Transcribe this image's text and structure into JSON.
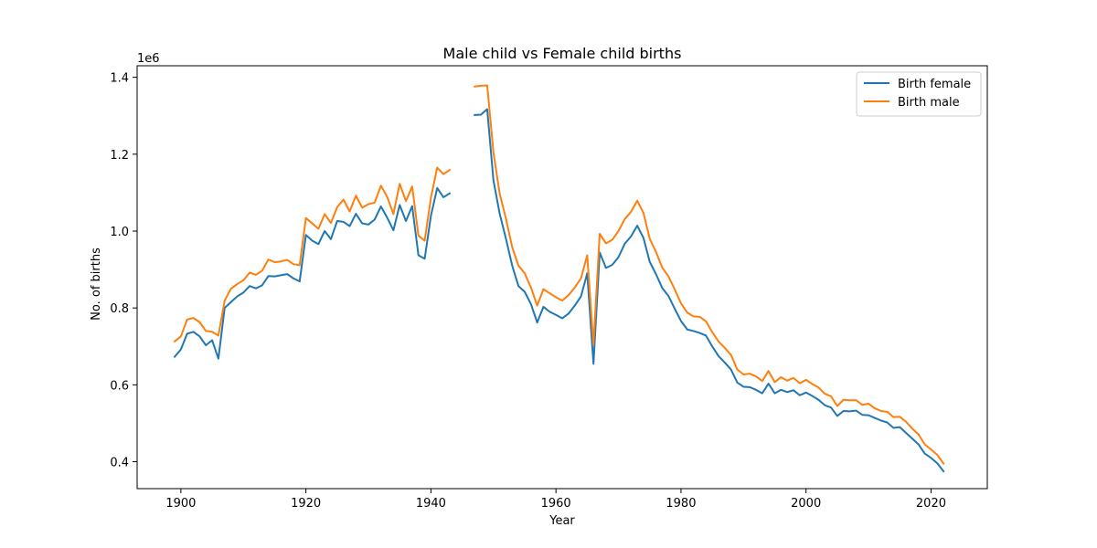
{
  "chart_data": {
    "type": "line",
    "title": "Male child vs Female child births",
    "xlabel": "Year",
    "ylabel": "No. of births",
    "y_offset_label": "1e6",
    "xlim": [
      1893,
      2029
    ],
    "ylim": [
      330000,
      1430000
    ],
    "xticks": [
      1900,
      1920,
      1940,
      1960,
      1980,
      2000,
      2020
    ],
    "yticks": [
      400000,
      600000,
      800000,
      1000000,
      1200000,
      1400000
    ],
    "ytick_labels": [
      "0.4",
      "0.6",
      "0.8",
      "1.0",
      "1.2",
      "1.4"
    ],
    "legend_position": "top-right",
    "grid": false,
    "series": [
      {
        "name": "Birth female",
        "color": "#1f77b4",
        "points": [
          [
            1899,
            673000
          ],
          [
            1900,
            692000
          ],
          [
            1901,
            733000
          ],
          [
            1902,
            738000
          ],
          [
            1903,
            726000
          ],
          [
            1904,
            703000
          ],
          [
            1905,
            716000
          ],
          [
            1906,
            668000
          ],
          [
            1907,
            800000
          ],
          [
            1908,
            815000
          ],
          [
            1909,
            830000
          ],
          [
            1910,
            840000
          ],
          [
            1911,
            857000
          ],
          [
            1912,
            851000
          ],
          [
            1913,
            859000
          ],
          [
            1914,
            883000
          ],
          [
            1915,
            882000
          ],
          [
            1916,
            885000
          ],
          [
            1917,
            888000
          ],
          [
            1918,
            877000
          ],
          [
            1919,
            869000
          ],
          [
            1920,
            990000
          ],
          [
            1921,
            975000
          ],
          [
            1922,
            966000
          ],
          [
            1923,
            1000000
          ],
          [
            1924,
            979000
          ],
          [
            1925,
            1026000
          ],
          [
            1926,
            1024000
          ],
          [
            1927,
            1013000
          ],
          [
            1928,
            1045000
          ],
          [
            1929,
            1020000
          ],
          [
            1930,
            1017000
          ],
          [
            1931,
            1030000
          ],
          [
            1932,
            1064000
          ],
          [
            1933,
            1035000
          ],
          [
            1934,
            1002000
          ],
          [
            1935,
            1068000
          ],
          [
            1936,
            1026000
          ],
          [
            1937,
            1065000
          ],
          [
            1938,
            937000
          ],
          [
            1939,
            928000
          ],
          [
            1940,
            1040000
          ],
          [
            1941,
            1112000
          ],
          [
            1942,
            1088000
          ],
          [
            1943,
            1098000
          ],
          [
            1944,
            null
          ],
          [
            1945,
            null
          ],
          [
            1946,
            null
          ],
          [
            1947,
            1302000
          ],
          [
            1948,
            1303000
          ],
          [
            1949,
            1317000
          ],
          [
            1950,
            1132000
          ],
          [
            1951,
            1045000
          ],
          [
            1952,
            980000
          ],
          [
            1953,
            910000
          ],
          [
            1954,
            857000
          ],
          [
            1955,
            842000
          ],
          [
            1956,
            810000
          ],
          [
            1957,
            762000
          ],
          [
            1958,
            803000
          ],
          [
            1959,
            790000
          ],
          [
            1960,
            782000
          ],
          [
            1961,
            773000
          ],
          [
            1962,
            785000
          ],
          [
            1963,
            806000
          ],
          [
            1964,
            830000
          ],
          [
            1965,
            890000
          ],
          [
            1966,
            655000
          ],
          [
            1967,
            944000
          ],
          [
            1968,
            904000
          ],
          [
            1969,
            912000
          ],
          [
            1970,
            932000
          ],
          [
            1971,
            967000
          ],
          [
            1972,
            986000
          ],
          [
            1973,
            1014000
          ],
          [
            1974,
            982000
          ],
          [
            1975,
            920000
          ],
          [
            1976,
            888000
          ],
          [
            1977,
            852000
          ],
          [
            1978,
            831000
          ],
          [
            1979,
            798000
          ],
          [
            1980,
            766000
          ],
          [
            1981,
            744000
          ],
          [
            1982,
            740000
          ],
          [
            1983,
            735000
          ],
          [
            1984,
            728000
          ],
          [
            1985,
            700000
          ],
          [
            1986,
            675000
          ],
          [
            1987,
            658000
          ],
          [
            1988,
            640000
          ],
          [
            1989,
            606000
          ],
          [
            1990,
            595000
          ],
          [
            1991,
            594000
          ],
          [
            1992,
            587000
          ],
          [
            1993,
            578000
          ],
          [
            1994,
            603000
          ],
          [
            1995,
            578000
          ],
          [
            1996,
            587000
          ],
          [
            1997,
            581000
          ],
          [
            1998,
            586000
          ],
          [
            1999,
            573000
          ],
          [
            2000,
            580000
          ],
          [
            2001,
            571000
          ],
          [
            2002,
            561000
          ],
          [
            2003,
            547000
          ],
          [
            2004,
            541000
          ],
          [
            2005,
            519000
          ],
          [
            2006,
            532000
          ],
          [
            2007,
            531000
          ],
          [
            2008,
            533000
          ],
          [
            2009,
            522000
          ],
          [
            2010,
            521000
          ],
          [
            2011,
            514000
          ],
          [
            2012,
            507000
          ],
          [
            2013,
            502000
          ],
          [
            2014,
            488000
          ],
          [
            2015,
            490000
          ],
          [
            2016,
            475000
          ],
          [
            2017,
            460000
          ],
          [
            2018,
            445000
          ],
          [
            2019,
            421000
          ],
          [
            2020,
            410000
          ],
          [
            2021,
            396000
          ],
          [
            2022,
            375000
          ]
        ]
      },
      {
        "name": "Birth male",
        "color": "#ff7f0e",
        "points": [
          [
            1899,
            713000
          ],
          [
            1900,
            726000
          ],
          [
            1901,
            770000
          ],
          [
            1902,
            774000
          ],
          [
            1903,
            763000
          ],
          [
            1904,
            740000
          ],
          [
            1905,
            738000
          ],
          [
            1906,
            728000
          ],
          [
            1907,
            819000
          ],
          [
            1908,
            850000
          ],
          [
            1909,
            862000
          ],
          [
            1910,
            872000
          ],
          [
            1911,
            892000
          ],
          [
            1912,
            886000
          ],
          [
            1913,
            897000
          ],
          [
            1914,
            926000
          ],
          [
            1915,
            919000
          ],
          [
            1916,
            921000
          ],
          [
            1917,
            925000
          ],
          [
            1918,
            914000
          ],
          [
            1919,
            911000
          ],
          [
            1920,
            1034000
          ],
          [
            1921,
            1020000
          ],
          [
            1922,
            1006000
          ],
          [
            1923,
            1044000
          ],
          [
            1924,
            1021000
          ],
          [
            1925,
            1062000
          ],
          [
            1926,
            1082000
          ],
          [
            1927,
            1051000
          ],
          [
            1928,
            1092000
          ],
          [
            1929,
            1061000
          ],
          [
            1930,
            1070000
          ],
          [
            1931,
            1074000
          ],
          [
            1932,
            1118000
          ],
          [
            1933,
            1089000
          ],
          [
            1934,
            1044000
          ],
          [
            1935,
            1123000
          ],
          [
            1936,
            1078000
          ],
          [
            1937,
            1116000
          ],
          [
            1938,
            988000
          ],
          [
            1939,
            975000
          ],
          [
            1940,
            1087000
          ],
          [
            1941,
            1165000
          ],
          [
            1942,
            1148000
          ],
          [
            1943,
            1159000
          ],
          [
            1944,
            null
          ],
          [
            1945,
            null
          ],
          [
            1946,
            null
          ],
          [
            1947,
            1376000
          ],
          [
            1948,
            1378000
          ],
          [
            1949,
            1379000
          ],
          [
            1950,
            1204000
          ],
          [
            1951,
            1097000
          ],
          [
            1952,
            1032000
          ],
          [
            1953,
            958000
          ],
          [
            1954,
            910000
          ],
          [
            1955,
            890000
          ],
          [
            1956,
            853000
          ],
          [
            1957,
            806000
          ],
          [
            1958,
            849000
          ],
          [
            1959,
            838000
          ],
          [
            1960,
            828000
          ],
          [
            1961,
            819000
          ],
          [
            1962,
            833000
          ],
          [
            1963,
            853000
          ],
          [
            1964,
            877000
          ],
          [
            1965,
            937000
          ],
          [
            1966,
            705000
          ],
          [
            1967,
            993000
          ],
          [
            1968,
            968000
          ],
          [
            1969,
            977000
          ],
          [
            1970,
            1000000
          ],
          [
            1971,
            1031000
          ],
          [
            1972,
            1050000
          ],
          [
            1973,
            1079000
          ],
          [
            1974,
            1047000
          ],
          [
            1975,
            980000
          ],
          [
            1976,
            946000
          ],
          [
            1977,
            905000
          ],
          [
            1978,
            882000
          ],
          [
            1979,
            848000
          ],
          [
            1980,
            812000
          ],
          [
            1981,
            788000
          ],
          [
            1982,
            778000
          ],
          [
            1983,
            777000
          ],
          [
            1984,
            765000
          ],
          [
            1985,
            737000
          ],
          [
            1986,
            713000
          ],
          [
            1987,
            696000
          ],
          [
            1988,
            678000
          ],
          [
            1989,
            640000
          ],
          [
            1990,
            627000
          ],
          [
            1991,
            629000
          ],
          [
            1992,
            622000
          ],
          [
            1993,
            610000
          ],
          [
            1994,
            636000
          ],
          [
            1995,
            607000
          ],
          [
            1996,
            620000
          ],
          [
            1997,
            611000
          ],
          [
            1998,
            618000
          ],
          [
            1999,
            604000
          ],
          [
            2000,
            613000
          ],
          [
            2001,
            602000
          ],
          [
            2002,
            593000
          ],
          [
            2003,
            577000
          ],
          [
            2004,
            570000
          ],
          [
            2005,
            545000
          ],
          [
            2006,
            561000
          ],
          [
            2007,
            560000
          ],
          [
            2008,
            560000
          ],
          [
            2009,
            548000
          ],
          [
            2010,
            551000
          ],
          [
            2011,
            539000
          ],
          [
            2012,
            532000
          ],
          [
            2013,
            530000
          ],
          [
            2014,
            516000
          ],
          [
            2015,
            517000
          ],
          [
            2016,
            504000
          ],
          [
            2017,
            486000
          ],
          [
            2018,
            471000
          ],
          [
            2019,
            445000
          ],
          [
            2020,
            432000
          ],
          [
            2021,
            418000
          ],
          [
            2022,
            395000
          ]
        ]
      }
    ]
  }
}
